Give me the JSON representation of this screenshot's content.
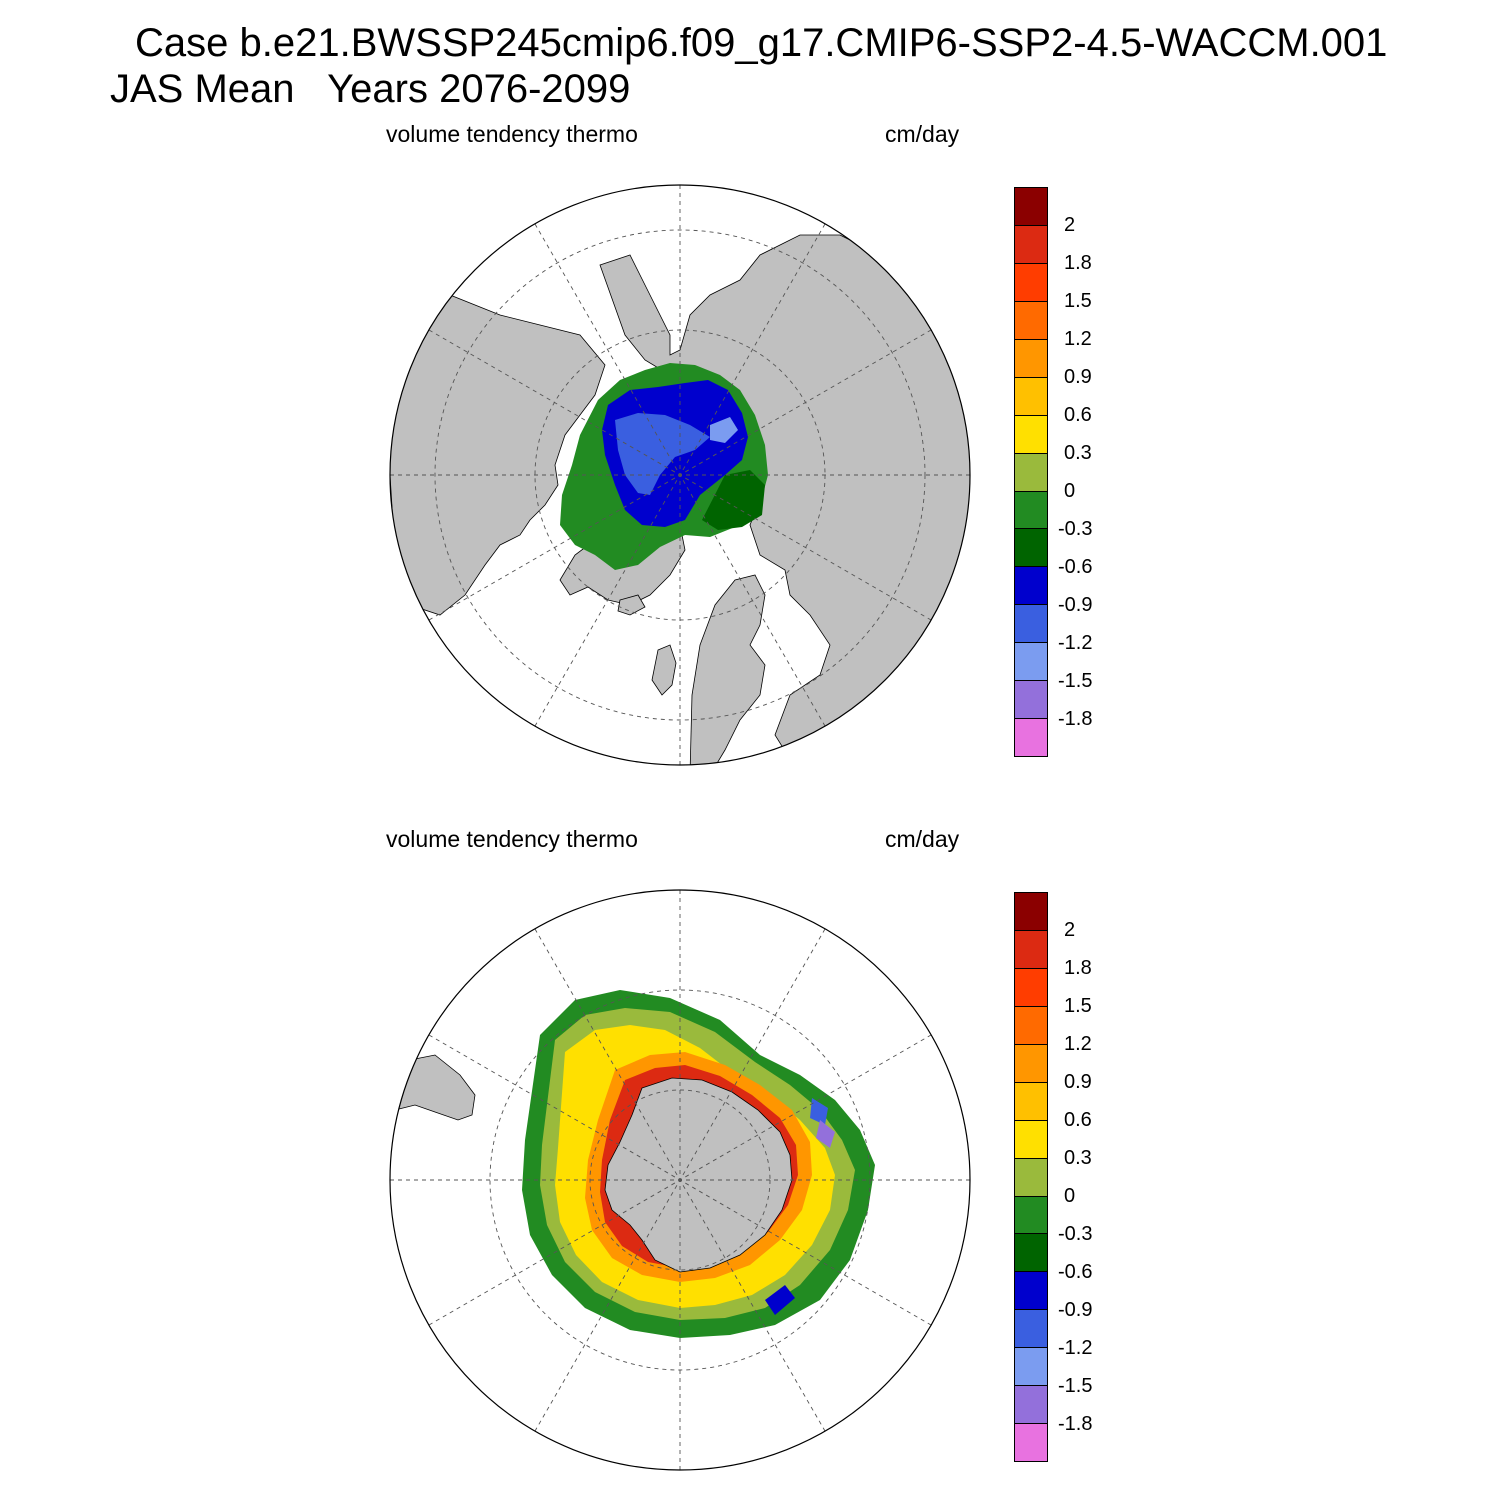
{
  "title": {
    "line1": "Case b.e21.BWSSP245cmip6.f09_g17.CMIP6-SSP2-4.5-WACCM.001",
    "line2": "JAS Mean   Years 2076-2099"
  },
  "colorbar": {
    "colors": [
      "#8b0000",
      "#dc2a12",
      "#ff3d00",
      "#ff6a00",
      "#ff9600",
      "#ffc000",
      "#ffe000",
      "#9aba3c",
      "#228b22",
      "#006400",
      "#0000cd",
      "#3a5fe0",
      "#7b9cf0",
      "#9370db",
      "#e872e0"
    ],
    "tick_labels": [
      "2",
      "1.8",
      "1.5",
      "1.2",
      "0.9",
      "0.6",
      "0.3",
      "0",
      "-0.3",
      "-0.6",
      "-0.9",
      "-1.2",
      "-1.5",
      "-1.8"
    ]
  },
  "colors": {
    "land": "#c0c0c0",
    "ocean": "#ffffff",
    "grid": "#555555",
    "outline": "#000000"
  },
  "panels": [
    {
      "id": "north",
      "left_label": "volume tendency thermo",
      "right_label": "cm/day",
      "projection": "polar-stereographic-north"
    },
    {
      "id": "south",
      "left_label": "volume tendency thermo",
      "right_label": "cm/day",
      "projection": "polar-stereographic-south"
    }
  ]
}
